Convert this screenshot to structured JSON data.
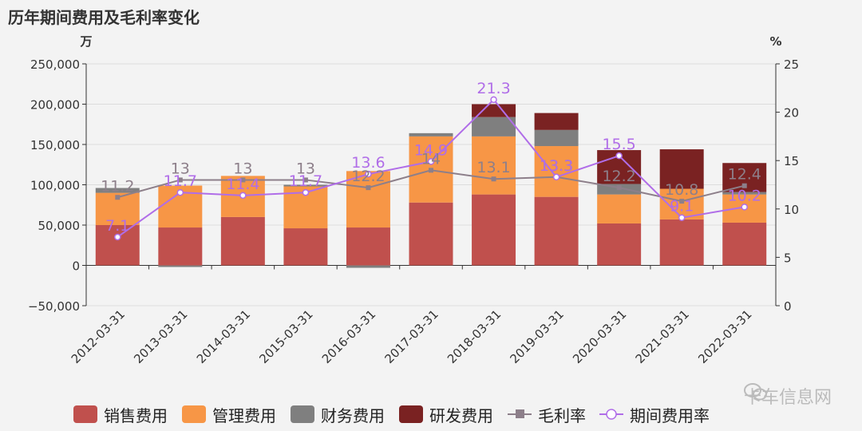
{
  "title": "历年期间费用及毛利率变化",
  "chart_data": {
    "type": "bar",
    "categories": [
      "2012-03-31",
      "2013-03-31",
      "2014-03-31",
      "2015-03-31",
      "2016-03-31",
      "2017-03-31",
      "2018-03-31",
      "2019-03-31",
      "2020-03-31",
      "2021-03-31",
      "2022-03-31"
    ],
    "left_axis": {
      "unit": "万",
      "ticks": [
        "250,000",
        "200,000",
        "150,000",
        "100,000",
        "50,000",
        "0",
        "−50,000"
      ],
      "ylim": [
        -50000,
        250000
      ]
    },
    "right_axis": {
      "unit": "%",
      "ticks": [
        "25",
        "20",
        "15",
        "10",
        "5",
        "0"
      ],
      "ylim": [
        0,
        25
      ]
    },
    "series": [
      {
        "name": "销售费用",
        "kind": "bar",
        "color": "#c0504d",
        "values": [
          50000,
          47000,
          60000,
          46000,
          47000,
          78000,
          88000,
          85000,
          52000,
          57000,
          53000
        ]
      },
      {
        "name": "管理费用",
        "kind": "bar",
        "color": "#f79646",
        "values": [
          40000,
          52000,
          51000,
          52000,
          70000,
          82000,
          72000,
          63000,
          36000,
          38000,
          35000
        ]
      },
      {
        "name": "财务费用",
        "kind": "bar",
        "color": "#7f7f7f",
        "values": [
          6000,
          -2000,
          0,
          2000,
          -3000,
          4000,
          24000,
          20000,
          13000,
          0,
          3000
        ]
      },
      {
        "name": "研发费用",
        "kind": "bar",
        "color": "#7a2222",
        "values": [
          0,
          0,
          0,
          0,
          0,
          0,
          16000,
          21000,
          42000,
          49000,
          36000
        ]
      },
      {
        "name": "毛利率",
        "kind": "line",
        "color": "#8d7f8a",
        "values": [
          11.2,
          13,
          13,
          13,
          12.2,
          14,
          13.1,
          13.3,
          12.2,
          10.8,
          12.4
        ],
        "labels": [
          "11.2",
          "13",
          "13",
          "13",
          "12.2",
          "14",
          "13.1",
          "13.3",
          "12.2",
          "10.8",
          "12.4"
        ]
      },
      {
        "name": "期间费用率",
        "kind": "line",
        "color": "#b06de8",
        "values": [
          7.1,
          11.7,
          11.4,
          11.7,
          13.6,
          14.9,
          21.3,
          13.3,
          15.5,
          9.1,
          10.2
        ],
        "labels": [
          "7.1",
          "11.7",
          "11.4",
          "11.7",
          "13.6",
          "14.9",
          "21.3",
          "13.3",
          "15.5",
          "9.1",
          "10.2"
        ]
      }
    ],
    "legend_position": "bottom"
  },
  "watermark": {
    "text": "卡车信息网",
    "icon": "wechat-icon"
  }
}
